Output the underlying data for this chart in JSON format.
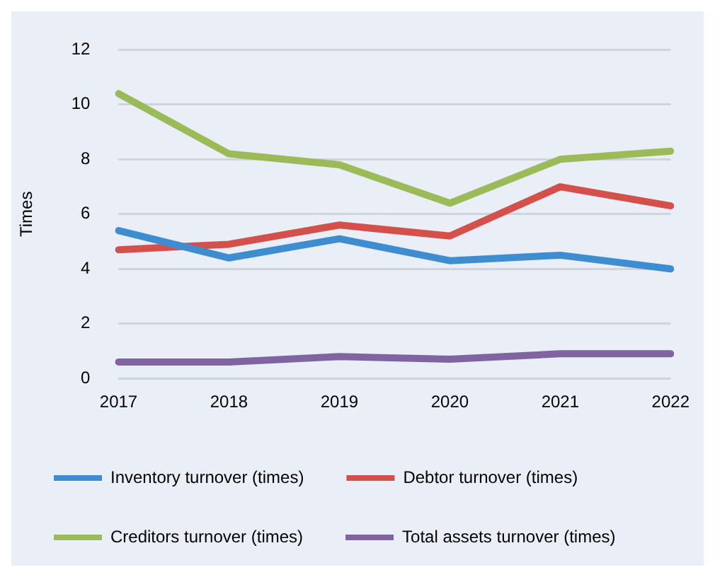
{
  "chart_data": {
    "type": "line",
    "ylabel": "Times",
    "categories": [
      "2017",
      "2018",
      "2019",
      "2020",
      "2021",
      "2022"
    ],
    "series": [
      {
        "name": "Inventory turnover (times)",
        "color": "#3d8dd0",
        "values": [
          5.4,
          4.4,
          5.1,
          4.3,
          4.5,
          4.0
        ]
      },
      {
        "name": "Debtor turnover (times)",
        "color": "#d4504a",
        "values": [
          4.7,
          4.9,
          5.6,
          5.2,
          7.0,
          6.3
        ]
      },
      {
        "name": "Creditors turnover (times)",
        "color": "#9bbb59",
        "values": [
          10.4,
          8.2,
          7.8,
          6.4,
          8.0,
          8.3
        ]
      },
      {
        "name": "Total assets turnover (times)",
        "color": "#8064a2",
        "values": [
          0.6,
          0.6,
          0.8,
          0.7,
          0.9,
          0.9
        ]
      }
    ],
    "ylim": [
      0,
      12
    ],
    "yticks": [
      0,
      2,
      4,
      6,
      8,
      10,
      12
    ],
    "grid": "y",
    "legend": "bottom",
    "marker": "none",
    "line_style": "solid"
  }
}
